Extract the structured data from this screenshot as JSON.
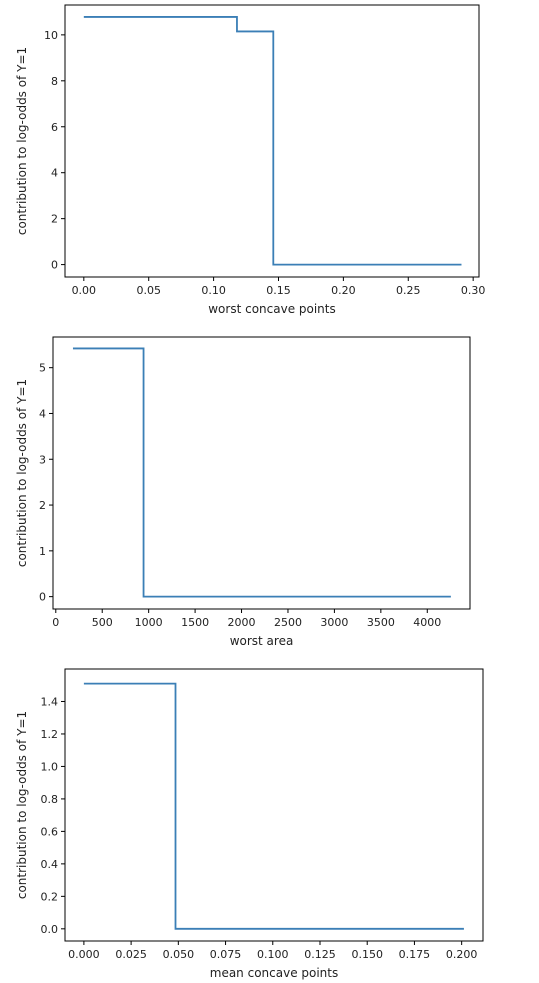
{
  "chart_data": [
    {
      "type": "line",
      "line_style": "step",
      "xlabel": "worst concave points",
      "ylabel": "contribution to log-odds of Y=1",
      "xlim": [
        -0.0145,
        0.3045
      ],
      "ylim": [
        -0.54,
        11.3
      ],
      "xticks": [
        0.0,
        0.05,
        0.1,
        0.15,
        0.2,
        0.25,
        0.3
      ],
      "xtick_labels": [
        "0.00",
        "0.05",
        "0.10",
        "0.15",
        "0.20",
        "0.25",
        "0.30"
      ],
      "yticks": [
        0,
        2,
        4,
        6,
        8,
        10
      ],
      "ytick_labels": [
        "0",
        "2",
        "4",
        "6",
        "8",
        "10"
      ],
      "series": [
        {
          "x": [
            0.0,
            0.118,
            0.118,
            0.146,
            0.146,
            0.291
          ],
          "y": [
            10.78,
            10.78,
            10.15,
            10.15,
            0.0,
            0.0
          ]
        }
      ],
      "grid": false,
      "color": "#3b7fb6"
    },
    {
      "type": "line",
      "line_style": "step",
      "xlabel": "worst area",
      "ylabel": "contribution to log-odds of Y=1",
      "xlim": [
        -30,
        4460
      ],
      "ylim": [
        -0.27,
        5.67
      ],
      "xticks": [
        0,
        500,
        1000,
        1500,
        2000,
        2500,
        3000,
        3500,
        4000
      ],
      "xtick_labels": [
        "0",
        "500",
        "1000",
        "1500",
        "2000",
        "2500",
        "3000",
        "3500",
        "4000"
      ],
      "yticks": [
        0,
        1,
        2,
        3,
        4,
        5
      ],
      "ytick_labels": [
        "0",
        "1",
        "2",
        "3",
        "4",
        "5"
      ],
      "series": [
        {
          "x": [
            185,
            945,
            945,
            4254
          ],
          "y": [
            5.42,
            5.42,
            0.0,
            0.0
          ]
        }
      ],
      "grid": false,
      "color": "#3b7fb6"
    },
    {
      "type": "line",
      "line_style": "step",
      "xlabel": "mean concave points",
      "ylabel": "contribution to log-odds of Y=1",
      "xlim": [
        -0.01,
        0.2113
      ],
      "ylim": [
        -0.075,
        1.6
      ],
      "xticks": [
        0.0,
        0.025,
        0.05,
        0.075,
        0.1,
        0.125,
        0.15,
        0.175,
        0.2
      ],
      "xtick_labels": [
        "0.000",
        "0.025",
        "0.050",
        "0.075",
        "0.100",
        "0.125",
        "0.150",
        "0.175",
        "0.200"
      ],
      "yticks": [
        0.0,
        0.2,
        0.4,
        0.6,
        0.8,
        1.0,
        1.2,
        1.4
      ],
      "ytick_labels": [
        "0.0",
        "0.2",
        "0.4",
        "0.6",
        "0.8",
        "1.0",
        "1.2",
        "1.4"
      ],
      "series": [
        {
          "x": [
            0.0,
            0.0485,
            0.0485,
            0.2012
          ],
          "y": [
            1.51,
            1.51,
            0.0,
            0.0
          ]
        }
      ],
      "grid": false,
      "color": "#3b7fb6"
    }
  ]
}
